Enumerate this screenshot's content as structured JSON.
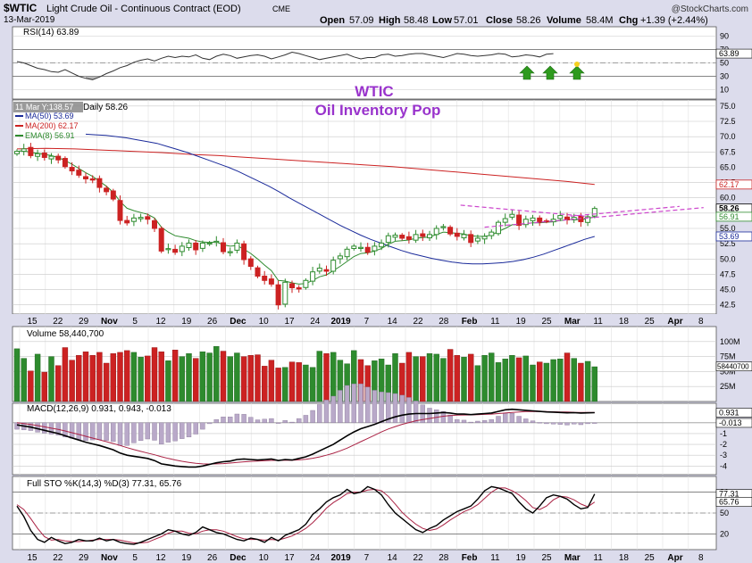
{
  "header": {
    "symbol": "$WTIC",
    "name": "Light Crude Oil - Continuous Contract (EOD)",
    "exchange": "CME",
    "date": "13-Mar-2019",
    "open_label": "Open",
    "open": "57.09",
    "high_label": "High",
    "high": "58.48",
    "low_label": "Low",
    "low": "57.01",
    "close_label": "Close",
    "close": "58.26",
    "volume_label": "Volume",
    "volume": "58.4M",
    "chg_label": "Chg",
    "chg": "+1.39 (+2.44%)",
    "brand": "@StockCharts.com"
  },
  "annotation": {
    "line1": "WTIC",
    "line2": "Oil Inventory Pop",
    "color": "#9933cc"
  },
  "colors": {
    "panel_bg": "#dcdcec",
    "plot_bg": "#ffffff",
    "up": "#2e8b2e",
    "down": "#cc2222",
    "ma50": "#1a2a9a",
    "ma200": "#cc2222",
    "ema8": "#2e8b2e",
    "wedge": "#cc44cc",
    "arrow": "#2e9a1e"
  },
  "chart_data": [
    {
      "type": "line",
      "title": "RSI(14) 63.89",
      "series": [
        {
          "name": "RSI(14)",
          "last": 63.89,
          "values": [
            52,
            50,
            46,
            42,
            40,
            37,
            36,
            40,
            35,
            30,
            27,
            25,
            29,
            34,
            38,
            43,
            46,
            51,
            54,
            56,
            53,
            57,
            60,
            58,
            60,
            59,
            62,
            57,
            55,
            60,
            63,
            61,
            57,
            59,
            61,
            62,
            60,
            56,
            59,
            62,
            66,
            64,
            61,
            58,
            55,
            57,
            59,
            61,
            63,
            59,
            56,
            58,
            58,
            62,
            63,
            60,
            61,
            63,
            64,
            64,
            62,
            60,
            58,
            61,
            64,
            63,
            61,
            60,
            61,
            62,
            64,
            63,
            59,
            60,
            62,
            61,
            59,
            63,
            63.89
          ]
        }
      ],
      "ylim": [
        0,
        100
      ],
      "yticks": [
        "90",
        "70",
        "50",
        "30",
        "10"
      ],
      "reference_lines": [
        70,
        30
      ],
      "arrows": 3
    },
    {
      "type": "candlestick",
      "title": "Daily 58.26",
      "hover_label": "11 Mar Y:138.57",
      "legend": [
        {
          "name": "MA(50) 53.69",
          "color": "#1a2a9a"
        },
        {
          "name": "MA(200) 62.17",
          "color": "#cc2222"
        },
        {
          "name": "EMA(8) 56.91",
          "color": "#2e8b2e"
        }
      ],
      "ylim": [
        41,
        76
      ],
      "yticks": [
        "75.0",
        "72.5",
        "70.0",
        "67.5",
        "65.0",
        "62.5",
        "60.0",
        "57.5",
        "55.0",
        "52.5",
        "50.0",
        "47.5",
        "45.0",
        "42.5"
      ],
      "price_tags": [
        {
          "label": "62.17",
          "color": "#cc2222",
          "value": 62.17
        },
        {
          "label": "58.26",
          "color": "#000000",
          "value": 58.26
        },
        {
          "label": "56.91",
          "color": "#2e8b2e",
          "value": 56.91
        },
        {
          "label": "53.69",
          "color": "#1a2a9a",
          "value": 53.69
        }
      ],
      "xticks": [
        "15",
        "22",
        "29",
        "Nov",
        "5",
        "12",
        "19",
        "26",
        "Dec",
        "10",
        "17",
        "24",
        "2019",
        "7",
        "14",
        "22",
        "28",
        "Feb",
        "11",
        "19",
        "25",
        "Mar",
        "11",
        "18",
        "25",
        "Apr",
        "8"
      ],
      "closes": [
        67.6,
        68.0,
        66.9,
        67.2,
        66.6,
        66.8,
        66.2,
        65.1,
        64.4,
        63.7,
        63.1,
        62.9,
        61.7,
        61.0,
        59.8,
        56.3,
        55.9,
        56.7,
        56.8,
        56.5,
        55.0,
        51.3,
        51.7,
        51.1,
        52.1,
        52.6,
        51.5,
        52.6,
        52.6,
        52.9,
        51.2,
        51.2,
        52.6,
        49.9,
        48.8,
        47.2,
        46.5,
        45.9,
        42.5,
        46.2,
        45.3,
        45.1,
        46.5,
        47.9,
        48.5,
        48.0,
        49.8,
        50.5,
        51.6,
        52.1,
        51.9,
        51.1,
        52.1,
        52.6,
        53.8,
        53.9,
        53.4,
        53.2,
        54.0,
        53.7,
        54.0,
        55.0,
        55.3,
        54.1,
        53.7,
        54.0,
        52.7,
        53.4,
        53.7,
        54.4,
        56.0,
        56.6,
        57.3,
        55.5,
        56.5,
        56.7,
        56.0,
        56.2,
        56.5,
        57.1,
        56.4,
        56.8,
        56.1,
        56.9,
        58.26
      ],
      "ma50": [
        70.4,
        70.3,
        70.2,
        70.0,
        69.8,
        69.5,
        69.2,
        68.9,
        68.4,
        67.9,
        67.4,
        66.8,
        66.2,
        65.6,
        65.0,
        64.3,
        63.5,
        62.7,
        61.9,
        61.0,
        60.0,
        59.1,
        58.2,
        57.3,
        56.4,
        55.5,
        54.7,
        53.9,
        53.2,
        52.6,
        52.0,
        51.4,
        50.9,
        50.5,
        50.1,
        49.8,
        49.5,
        49.3,
        49.2,
        49.2,
        49.3,
        49.4,
        49.6,
        49.9,
        50.3,
        50.8,
        51.4,
        52.0,
        52.6,
        53.2,
        53.69
      ],
      "ma200": [
        68.0,
        68.1,
        68.0,
        67.8,
        67.6,
        67.4,
        67.1,
        66.9,
        66.6,
        66.3,
        66.0,
        65.7,
        65.4,
        65.1,
        64.7,
        64.3,
        63.9,
        63.5,
        63.1,
        62.7,
        62.17
      ],
      "ema8": [
        67.6,
        67.7,
        67.4,
        67.3,
        67.1,
        66.9,
        66.6,
        66.1,
        65.5,
        64.8,
        64.1,
        63.5,
        62.7,
        61.9,
        60.9,
        59.4,
        58.3,
        57.9,
        57.6,
        57.3,
        56.7,
        55.2,
        54.4,
        53.8,
        53.6,
        53.4,
        53.0,
        52.8,
        52.7,
        52.8,
        52.3,
        52.1,
        52.2,
        51.6,
        50.9,
        50.0,
        49.0,
        48.1,
        46.5,
        46.4,
        46.1,
        45.9,
        46.0,
        46.5,
        47.1,
        47.4,
        48.1,
        48.8,
        49.6,
        50.4,
        50.9,
        51.0,
        51.3,
        51.7,
        52.4,
        52.9,
        53.0,
        53.1,
        53.4,
        53.5,
        53.6,
        54.0,
        54.4,
        54.3,
        54.2,
        54.1,
        53.8,
        53.7,
        53.7,
        53.9,
        54.5,
        55.0,
        55.6,
        55.6,
        55.8,
        55.9,
        55.9,
        56.0,
        56.1,
        56.3,
        56.4,
        56.5,
        56.4,
        56.6,
        56.91
      ],
      "wedge": [
        [
          66.5,
          58.8
        ],
        [
          82.5,
          57.0
        ],
        [
          70.0,
          55.2
        ],
        [
          86.0,
          56.8
        ]
      ]
    },
    {
      "type": "bar",
      "title": "Volume 58,440,700",
      "ylim": [
        0,
        125
      ],
      "yticks": [
        "100M",
        "75M",
        "50M",
        "25M"
      ],
      "last_tag": "58440700",
      "values": [
        88,
        72,
        51,
        79,
        49,
        75,
        60,
        90,
        69,
        77,
        83,
        77,
        82,
        64,
        80,
        82,
        85,
        82,
        74,
        76,
        90,
        83,
        68,
        86,
        75,
        80,
        72,
        83,
        81,
        92,
        84,
        75,
        81,
        75,
        77,
        78,
        59,
        69,
        56,
        57,
        66,
        65,
        61,
        57,
        84,
        80,
        82,
        69,
        63,
        85,
        70,
        60,
        68,
        71,
        61,
        80,
        64,
        82,
        75,
        75,
        80,
        79,
        72,
        87,
        77,
        74,
        79,
        60,
        77,
        81,
        65,
        71,
        77,
        73,
        76,
        61,
        66,
        64,
        70,
        71,
        81,
        72,
        64,
        67,
        58
      ]
    },
    {
      "type": "line",
      "title": "MACD(12,26,9) 0.931, 0.943, -0.013",
      "ylim": [
        -4.8,
        1.8
      ],
      "yticks": [
        "-1",
        "-2",
        "-3",
        "-4"
      ],
      "value_tags": [
        {
          "label": "0.931",
          "value": 0.931
        },
        {
          "label": "-0.013",
          "value": -0.013
        }
      ],
      "macd": [
        -0.2,
        -0.3,
        -0.4,
        -0.55,
        -0.7,
        -0.85,
        -1.0,
        -1.2,
        -1.4,
        -1.6,
        -1.8,
        -1.95,
        -2.1,
        -2.3,
        -2.5,
        -2.8,
        -3.0,
        -3.1,
        -3.2,
        -3.3,
        -3.5,
        -3.8,
        -3.9,
        -4.0,
        -4.05,
        -4.1,
        -4.1,
        -4.0,
        -3.85,
        -3.7,
        -3.6,
        -3.55,
        -3.4,
        -3.35,
        -3.4,
        -3.45,
        -3.4,
        -3.35,
        -3.5,
        -3.4,
        -3.45,
        -3.3,
        -3.15,
        -2.9,
        -2.6,
        -2.3,
        -2.0,
        -1.6,
        -1.2,
        -0.85,
        -0.55,
        -0.35,
        -0.15,
        0.1,
        0.35,
        0.55,
        0.7,
        0.8,
        0.85,
        0.85,
        0.85,
        0.9,
        0.95,
        0.9,
        0.8,
        0.8,
        0.75,
        0.8,
        0.85,
        0.9,
        1.05,
        1.2,
        1.25,
        1.2,
        1.15,
        1.1,
        1.05,
        1.0,
        0.98,
        0.95,
        0.92,
        0.93,
        0.9,
        0.92,
        0.931
      ],
      "signal": [
        0.0,
        -0.08,
        -0.16,
        -0.26,
        -0.38,
        -0.5,
        -0.62,
        -0.76,
        -0.92,
        -1.08,
        -1.25,
        -1.42,
        -1.58,
        -1.75,
        -1.92,
        -2.1,
        -2.3,
        -2.48,
        -2.65,
        -2.8,
        -2.96,
        -3.14,
        -3.3,
        -3.44,
        -3.56,
        -3.66,
        -3.75,
        -3.8,
        -3.82,
        -3.8,
        -3.78,
        -3.73,
        -3.67,
        -3.61,
        -3.57,
        -3.54,
        -3.51,
        -3.48,
        -3.48,
        -3.47,
        -3.47,
        -3.43,
        -3.38,
        -3.28,
        -3.16,
        -3.0,
        -2.82,
        -2.6,
        -2.35,
        -2.05,
        -1.75,
        -1.45,
        -1.15,
        -0.85,
        -0.58,
        -0.35,
        -0.15,
        0.02,
        0.18,
        0.3,
        0.4,
        0.5,
        0.6,
        0.66,
        0.7,
        0.72,
        0.73,
        0.75,
        0.78,
        0.8,
        0.85,
        0.9,
        0.96,
        1.0,
        1.03,
        1.04,
        1.04,
        1.03,
        1.02,
        1.0,
        0.99,
        0.97,
        0.96,
        0.95,
        0.943
      ],
      "histogram_scale": 3.0
    },
    {
      "type": "line",
      "title": "Full STO %K(14,3) %D(3) 77.31, 65.76",
      "ylim": [
        0,
        100
      ],
      "yticks": [
        "80",
        "50",
        "20"
      ],
      "value_tags": [
        {
          "label": "77.31",
          "value": 77.31
        },
        {
          "label": "65.76",
          "value": 65.76
        }
      ],
      "reference_lines": [
        80,
        20
      ],
      "k": [
        60,
        45,
        25,
        12,
        8,
        15,
        10,
        6,
        8,
        12,
        10,
        10,
        14,
        10,
        12,
        8,
        6,
        5,
        8,
        12,
        16,
        20,
        26,
        24,
        20,
        18,
        22,
        30,
        26,
        22,
        20,
        16,
        12,
        10,
        14,
        12,
        8,
        15,
        10,
        18,
        22,
        26,
        34,
        48,
        56,
        66,
        72,
        76,
        84,
        78,
        80,
        88,
        84,
        76,
        62,
        50,
        42,
        34,
        26,
        22,
        28,
        32,
        40,
        46,
        52,
        56,
        60,
        70,
        82,
        88,
        86,
        82,
        78,
        66,
        56,
        50,
        60,
        72,
        76,
        74,
        70,
        62,
        56,
        58,
        77.31
      ],
      "d": [
        62,
        55,
        42,
        28,
        16,
        11,
        12,
        10,
        9,
        9,
        10,
        11,
        12,
        12,
        12,
        11,
        9,
        7,
        7,
        8,
        12,
        16,
        21,
        24,
        24,
        21,
        20,
        24,
        26,
        26,
        24,
        20,
        16,
        13,
        12,
        12,
        11,
        12,
        11,
        14,
        17,
        22,
        28,
        36,
        46,
        57,
        65,
        71,
        78,
        80,
        80,
        83,
        84,
        82,
        74,
        63,
        51,
        42,
        34,
        28,
        25,
        27,
        33,
        40,
        46,
        52,
        56,
        62,
        71,
        80,
        86,
        86,
        82,
        76,
        68,
        58,
        55,
        60,
        69,
        74,
        73,
        69,
        63,
        59,
        65.76
      ]
    }
  ]
}
